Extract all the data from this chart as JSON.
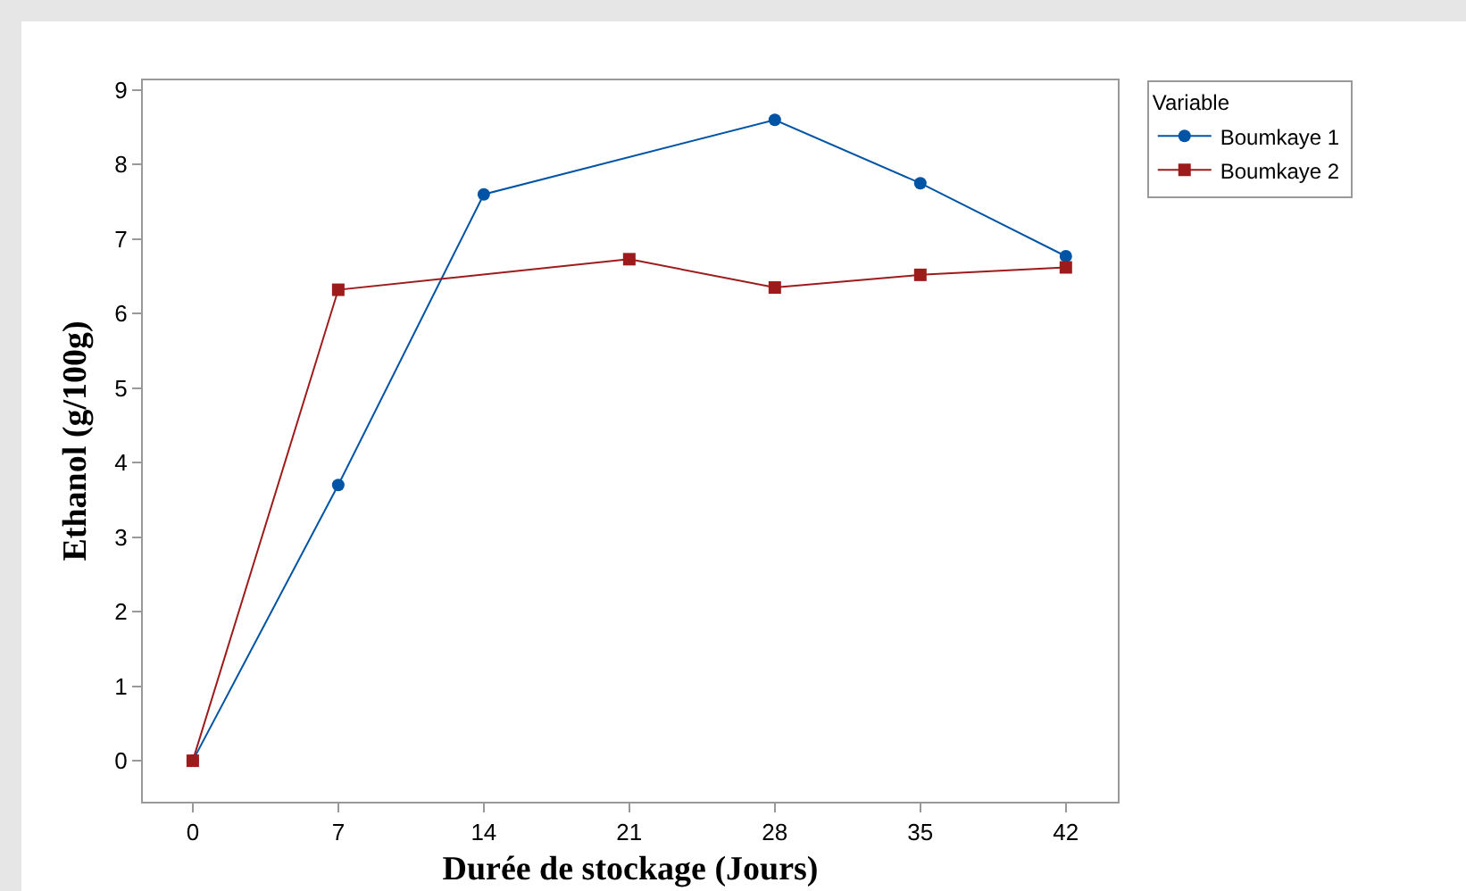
{
  "chart_data": {
    "type": "line",
    "xlabel": "Durée de stockage (Jours)",
    "ylabel": "Ethanol (g/100g)",
    "legend_title": "Variable",
    "xlim": [
      -2.4,
      44.5
    ],
    "xticks": [
      0,
      7,
      14,
      21,
      28,
      35,
      42
    ],
    "ylim": [
      -0.55,
      9.13
    ],
    "yticks": [
      0,
      1,
      2,
      3,
      4,
      5,
      6,
      7,
      8,
      9
    ],
    "series": [
      {
        "name": "Boumkaye 1",
        "color": "#0054a6",
        "marker": "circle",
        "x": [
          0,
          7,
          14,
          28,
          35,
          42
        ],
        "values": [
          0,
          3.7,
          7.6,
          8.6,
          7.75,
          6.77
        ]
      },
      {
        "name": "Boumkaye 2",
        "color": "#9e1b1b",
        "marker": "square",
        "x": [
          0,
          7,
          21,
          28,
          35,
          42
        ],
        "values": [
          0,
          6.32,
          6.73,
          6.35,
          6.52,
          6.62
        ]
      }
    ],
    "grid": false,
    "legend": "top right",
    "line_style": "solid"
  }
}
